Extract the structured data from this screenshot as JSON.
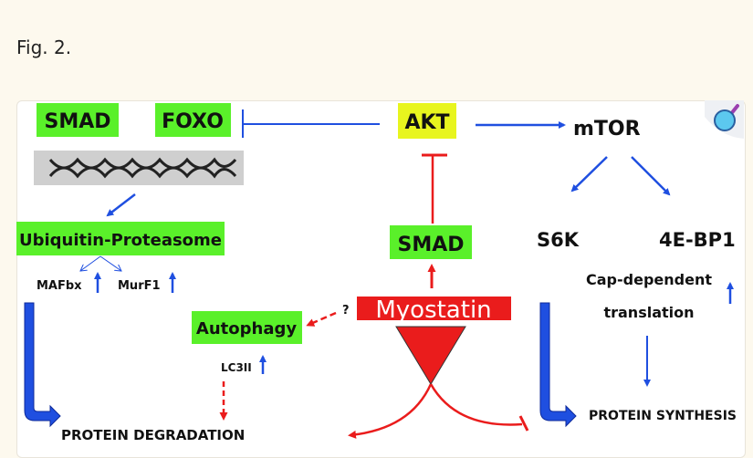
{
  "caption": "Fig. 2.",
  "nodes": {
    "smad_left": "SMAD",
    "foxo": "FOXO",
    "akt": "AKT",
    "mtor": "mTOR",
    "ubiquitin": "Ubiquitin-Proteasome",
    "mafbx": "MAFbx",
    "murf1": "MurF1",
    "autophagy": "Autophagy",
    "lc3ii": "LC3II",
    "question": "?",
    "myostatin": "Myostatin",
    "smad_center": "SMAD",
    "s6k": "S6K",
    "ebp1": "4E-BP1",
    "cap_dependent": "Cap-dependent",
    "translation": "translation",
    "protein_degradation": "PROTEIN DEGRADATION",
    "protein_synthesis": "PROTEIN SYNTHESIS"
  },
  "colors": {
    "green": "#5af02a",
    "yellow": "#e8f51e",
    "red": "#ea1c1c",
    "blue": "#1f4fe0",
    "background": "#fdf9ee"
  },
  "icons": [
    "dna-image",
    "magnifier-icon"
  ]
}
